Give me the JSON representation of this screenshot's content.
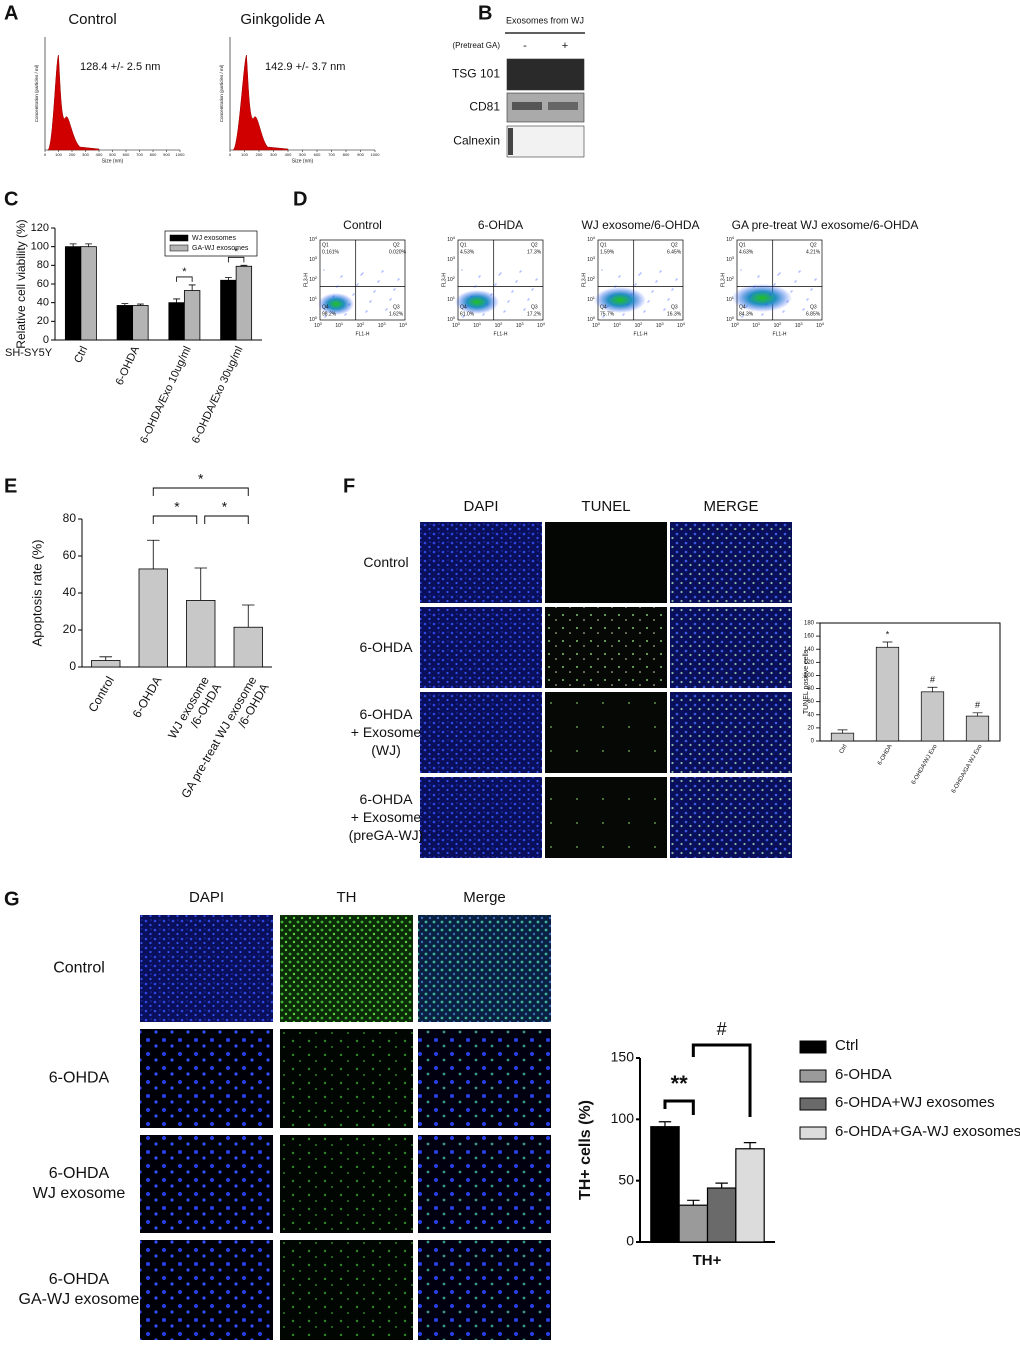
{
  "panel_labels": [
    "A",
    "B",
    "C",
    "D",
    "E",
    "F",
    "G"
  ],
  "nta": {
    "plots": [
      {
        "title": "Control",
        "size": "128.4 +/- 2.5 nm"
      },
      {
        "title": "Ginkgolide A",
        "size": "142.9 +/- 3.7 nm"
      }
    ],
    "y_label": "Concentration (particles / ml)",
    "x_label": "Size (nm)",
    "xticks": [
      0,
      100,
      200,
      300,
      400,
      500,
      600,
      700,
      800,
      900,
      1000
    ]
  },
  "blot": {
    "header": "Exosomes from WJ",
    "pretreat": "(Pretreat GA)",
    "lanes": [
      "-",
      "+"
    ],
    "rows": [
      "TSG 101",
      "CD81",
      "Calnexin"
    ]
  },
  "flow": {
    "x_label": "FL1-H",
    "y_label": "FL3-H",
    "quadrant_names": [
      "Q1",
      "Q2",
      "Q3",
      "Q4"
    ],
    "decades": [
      {
        "base": "10",
        "exp": "0"
      },
      {
        "base": "10",
        "exp": "1"
      },
      {
        "base": "10",
        "exp": "2"
      },
      {
        "base": "10",
        "exp": "3"
      },
      {
        "base": "10",
        "exp": "4"
      }
    ],
    "plots": [
      {
        "title": "Control",
        "values": [
          "0.161%",
          "0.020%",
          "1.62%",
          "98.2%"
        ]
      },
      {
        "title": "6-OHDA",
        "values": [
          "4.53%",
          "17.3%",
          "17.2%",
          "61.0%"
        ]
      },
      {
        "title": "WJ exosome/6-OHDA",
        "values": [
          "1.59%",
          "6.45%",
          "16.3%",
          "75.7%"
        ]
      },
      {
        "title": "GA pre-treat WJ exosome/6-OHDA",
        "values": [
          "4.63%",
          "4.21%",
          "6.85%",
          "84.3%"
        ]
      }
    ]
  },
  "tunel": {
    "columns": [
      "DAPI",
      "TUNEL",
      "MERGE"
    ],
    "rows": [
      [
        "Control"
      ],
      [
        "6-OHDA"
      ],
      [
        "6-OHDA",
        "+ Exosome",
        "(WJ)"
      ],
      [
        "6-OHDA",
        "+ Exosome",
        "(preGA-WJ)"
      ]
    ]
  },
  "th": {
    "columns": [
      "DAPI",
      "TH",
      "Merge"
    ],
    "rows": [
      [
        "Control"
      ],
      [
        "6-OHDA"
      ],
      [
        "6-OHDA",
        "WJ exosome"
      ],
      [
        "6-OHDA",
        "GA-WJ exosome"
      ]
    ]
  },
  "chart_data": [
    {
      "type": "bar",
      "y_label": "Relative cell viability (%)",
      "x_prefix": "SH-SY5Y",
      "categories": [
        "Ctrl",
        "6-OHDA",
        "6-OHDA/Exo 10ug/ml",
        "6-OHDA/Exo 30ug/ml"
      ],
      "series": [
        {
          "name": "WJ exosomes",
          "color": "#000000",
          "values": [
            100,
            37,
            40,
            64
          ],
          "errors": [
            3,
            2,
            4,
            3
          ]
        },
        {
          "name": "GA-WJ exosomes",
          "color": "#b4b4b4",
          "values": [
            100,
            37,
            53,
            79
          ],
          "errors": [
            3,
            1.5,
            6,
            1
          ]
        }
      ],
      "ylim": [
        0,
        120
      ],
      "yticks": [
        0,
        20,
        40,
        60,
        80,
        100,
        120
      ],
      "annotations": [
        "*",
        "*"
      ]
    },
    {
      "type": "bar",
      "y_label": "Apoptosis rate (%)",
      "categories": [
        [
          "Control"
        ],
        [
          "6-OHDA"
        ],
        [
          "WJ exosome",
          "/6-OHDA"
        ],
        [
          "GA pre-treat WJ exosome",
          "/6-OHDA"
        ]
      ],
      "values": [
        3.5,
        53,
        36,
        21.5
      ],
      "errors": [
        2,
        15.5,
        17.5,
        12
      ],
      "color": "#c8c8c8",
      "ylim": [
        0,
        80
      ],
      "yticks": [
        0,
        20,
        40,
        60,
        80
      ],
      "annotations": [
        "*",
        "*",
        "*"
      ]
    },
    {
      "type": "bar",
      "y_label": "TUNEL positive cells",
      "categories": [
        "Ctrl",
        "6-OHDA",
        "6-OHDA/WJ Exo",
        "6-OHDA/GA WJ Exo"
      ],
      "values": [
        12,
        143,
        75,
        38
      ],
      "errors": [
        5,
        8,
        7,
        5
      ],
      "color": "#c8c8c8",
      "ylim": [
        0,
        180
      ],
      "yticks": [
        0,
        20,
        40,
        60,
        80,
        100,
        120,
        140,
        160,
        180
      ],
      "annotations": [
        "*",
        "#",
        "#"
      ]
    },
    {
      "type": "bar",
      "y_label": "TH+ cells (%)",
      "categories": [
        "TH+"
      ],
      "series": [
        {
          "name": "Ctrl",
          "color": "#000000",
          "values": [
            94
          ],
          "errors": [
            4
          ]
        },
        {
          "name": "6-OHDA",
          "color": "#9a9a9a",
          "values": [
            30
          ],
          "errors": [
            4
          ]
        },
        {
          "name": "6-OHDA+WJ exosomes",
          "color": "#6a6a6a",
          "values": [
            44
          ],
          "errors": [
            4
          ]
        },
        {
          "name": "6-OHDA+GA-WJ exosomes",
          "color": "#dcdcdc",
          "values": [
            76
          ],
          "errors": [
            5
          ]
        }
      ],
      "ylim": [
        0,
        150
      ],
      "yticks": [
        0,
        50,
        100,
        150
      ],
      "annotations": [
        "**",
        "#"
      ]
    }
  ]
}
